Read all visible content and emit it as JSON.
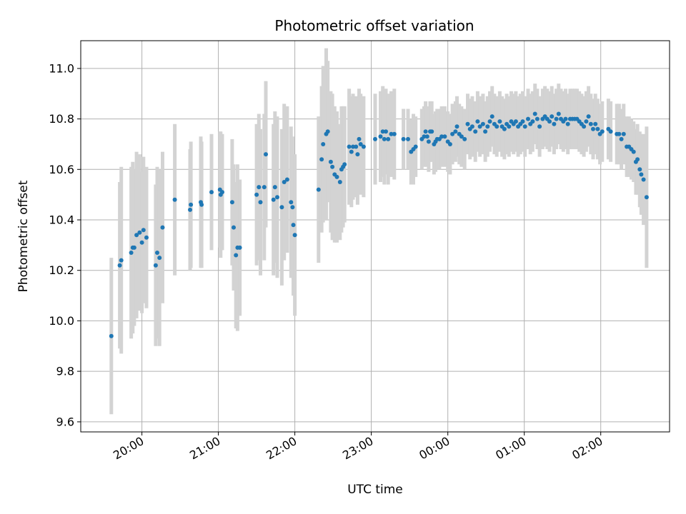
{
  "chart_data": {
    "type": "scatter",
    "title": "Photometric offset variation",
    "xlabel": "UTC time",
    "ylabel": "Photometric offset",
    "x_unit": "UTC hours (wrapping past midnight)",
    "xlim": [
      19.2,
      26.9
    ],
    "ylim": [
      9.56,
      11.11
    ],
    "grid": true,
    "x_ticks": [
      {
        "value": 20,
        "label": "20:00"
      },
      {
        "value": 21,
        "label": "21:00"
      },
      {
        "value": 22,
        "label": "22:00"
      },
      {
        "value": 23,
        "label": "23:00"
      },
      {
        "value": 24,
        "label": "00:00"
      },
      {
        "value": 25,
        "label": "01:00"
      },
      {
        "value": 26,
        "label": "02:00"
      }
    ],
    "y_ticks": [
      {
        "value": 9.6,
        "label": "9.6"
      },
      {
        "value": 9.8,
        "label": "9.8"
      },
      {
        "value": 10.0,
        "label": "10.0"
      },
      {
        "value": 10.2,
        "label": "10.2"
      },
      {
        "value": 10.4,
        "label": "10.4"
      },
      {
        "value": 10.6,
        "label": "10.6"
      },
      {
        "value": 10.8,
        "label": "10.8"
      },
      {
        "value": 11.0,
        "label": "11.0"
      }
    ],
    "colors": {
      "points": "#1f77b4",
      "errorbars": "#d3d3d3",
      "grid": "#b0b0b0"
    },
    "points": [
      [
        19.6,
        9.94,
        0.31
      ],
      [
        19.71,
        10.22,
        0.33
      ],
      [
        19.73,
        10.24,
        0.37
      ],
      [
        19.86,
        10.27,
        0.34
      ],
      [
        19.88,
        10.29,
        0.34
      ],
      [
        19.9,
        10.29,
        0.31
      ],
      [
        19.93,
        10.34,
        0.33
      ],
      [
        19.97,
        10.35,
        0.31
      ],
      [
        20.0,
        10.31,
        0.28
      ],
      [
        20.02,
        10.36,
        0.29
      ],
      [
        20.06,
        10.33,
        0.28
      ],
      [
        20.18,
        10.22,
        0.32
      ],
      [
        20.2,
        10.27,
        0.34
      ],
      [
        20.23,
        10.25,
        0.35
      ],
      [
        20.27,
        10.37,
        0.3
      ],
      [
        20.43,
        10.48,
        0.3
      ],
      [
        20.63,
        10.44,
        0.24
      ],
      [
        20.64,
        10.46,
        0.25
      ],
      [
        20.77,
        10.47,
        0.26
      ],
      [
        20.78,
        10.46,
        0.25
      ],
      [
        20.91,
        10.51,
        0.23
      ],
      [
        21.02,
        10.52,
        0.23
      ],
      [
        21.03,
        10.5,
        0.25
      ],
      [
        21.05,
        10.51,
        0.23
      ],
      [
        21.18,
        10.47,
        0.25
      ],
      [
        21.2,
        10.37,
        0.25
      ],
      [
        21.23,
        10.26,
        0.29
      ],
      [
        21.25,
        10.29,
        0.33
      ],
      [
        21.28,
        10.29,
        0.27
      ],
      [
        21.5,
        10.5,
        0.28
      ],
      [
        21.53,
        10.53,
        0.29
      ],
      [
        21.55,
        10.47,
        0.29
      ],
      [
        21.6,
        10.53,
        0.29
      ],
      [
        21.62,
        10.66,
        0.29
      ],
      [
        21.72,
        10.48,
        0.3
      ],
      [
        21.74,
        10.53,
        0.3
      ],
      [
        21.77,
        10.49,
        0.32
      ],
      [
        21.83,
        10.45,
        0.31
      ],
      [
        21.86,
        10.55,
        0.31
      ],
      [
        21.9,
        10.56,
        0.29
      ],
      [
        21.95,
        10.47,
        0.3
      ],
      [
        21.97,
        10.45,
        0.28
      ],
      [
        21.98,
        10.38,
        0.28
      ],
      [
        22.0,
        10.34,
        0.32
      ],
      [
        22.31,
        10.52,
        0.29
      ],
      [
        22.35,
        10.64,
        0.29
      ],
      [
        22.37,
        10.7,
        0.31
      ],
      [
        22.41,
        10.74,
        0.34
      ],
      [
        22.43,
        10.75,
        0.28
      ],
      [
        22.47,
        10.63,
        0.28
      ],
      [
        22.49,
        10.61,
        0.29
      ],
      [
        22.52,
        10.58,
        0.27
      ],
      [
        22.55,
        10.57,
        0.26
      ],
      [
        22.59,
        10.55,
        0.23
      ],
      [
        22.61,
        10.6,
        0.25
      ],
      [
        22.63,
        10.61,
        0.24
      ],
      [
        22.65,
        10.62,
        0.23
      ],
      [
        22.71,
        10.69,
        0.23
      ],
      [
        22.74,
        10.67,
        0.22
      ],
      [
        22.76,
        10.69,
        0.21
      ],
      [
        22.8,
        10.69,
        0.2
      ],
      [
        22.82,
        10.66,
        0.2
      ],
      [
        22.84,
        10.72,
        0.2
      ],
      [
        22.86,
        10.7,
        0.2
      ],
      [
        22.9,
        10.69,
        0.2
      ],
      [
        23.05,
        10.72,
        0.18
      ],
      [
        23.12,
        10.73,
        0.18
      ],
      [
        23.15,
        10.75,
        0.18
      ],
      [
        23.17,
        10.72,
        0.18
      ],
      [
        23.19,
        10.75,
        0.17
      ],
      [
        23.22,
        10.72,
        0.18
      ],
      [
        23.26,
        10.74,
        0.17
      ],
      [
        23.3,
        10.74,
        0.18
      ],
      [
        23.42,
        10.72,
        0.12
      ],
      [
        23.48,
        10.72,
        0.12
      ],
      [
        23.52,
        10.67,
        0.13
      ],
      [
        23.55,
        10.68,
        0.14
      ],
      [
        23.58,
        10.69,
        0.12
      ],
      [
        23.66,
        10.72,
        0.12
      ],
      [
        23.69,
        10.73,
        0.12
      ],
      [
        23.71,
        10.75,
        0.12
      ],
      [
        23.73,
        10.73,
        0.12
      ],
      [
        23.75,
        10.71,
        0.12
      ],
      [
        23.77,
        10.75,
        0.12
      ],
      [
        23.79,
        10.75,
        0.12
      ],
      [
        23.82,
        10.7,
        0.12
      ],
      [
        23.84,
        10.71,
        0.12
      ],
      [
        23.86,
        10.72,
        0.12
      ],
      [
        23.89,
        10.72,
        0.12
      ],
      [
        23.92,
        10.73,
        0.12
      ],
      [
        23.96,
        10.73,
        0.12
      ],
      [
        24.0,
        10.71,
        0.12
      ],
      [
        24.03,
        10.7,
        0.12
      ],
      [
        24.06,
        10.74,
        0.12
      ],
      [
        24.1,
        10.75,
        0.12
      ],
      [
        24.12,
        10.77,
        0.12
      ],
      [
        24.15,
        10.74,
        0.12
      ],
      [
        24.18,
        10.73,
        0.12
      ],
      [
        24.22,
        10.72,
        0.12
      ],
      [
        24.26,
        10.78,
        0.12
      ],
      [
        24.29,
        10.76,
        0.12
      ],
      [
        24.32,
        10.77,
        0.12
      ],
      [
        24.36,
        10.75,
        0.12
      ],
      [
        24.39,
        10.79,
        0.12
      ],
      [
        24.42,
        10.77,
        0.12
      ],
      [
        24.46,
        10.78,
        0.12
      ],
      [
        24.49,
        10.75,
        0.12
      ],
      [
        24.52,
        10.77,
        0.12
      ],
      [
        24.55,
        10.79,
        0.12
      ],
      [
        24.58,
        10.81,
        0.12
      ],
      [
        24.61,
        10.78,
        0.12
      ],
      [
        24.64,
        10.77,
        0.12
      ],
      [
        24.68,
        10.79,
        0.12
      ],
      [
        24.71,
        10.77,
        0.12
      ],
      [
        24.74,
        10.76,
        0.12
      ],
      [
        24.77,
        10.78,
        0.12
      ],
      [
        24.8,
        10.77,
        0.12
      ],
      [
        24.83,
        10.79,
        0.12
      ],
      [
        24.86,
        10.78,
        0.12
      ],
      [
        24.89,
        10.79,
        0.12
      ],
      [
        24.92,
        10.77,
        0.12
      ],
      [
        24.95,
        10.78,
        0.12
      ],
      [
        24.98,
        10.79,
        0.12
      ],
      [
        25.01,
        10.77,
        0.12
      ],
      [
        25.05,
        10.8,
        0.12
      ],
      [
        25.08,
        10.78,
        0.12
      ],
      [
        25.11,
        10.79,
        0.12
      ],
      [
        25.14,
        10.82,
        0.12
      ],
      [
        25.17,
        10.8,
        0.12
      ],
      [
        25.2,
        10.77,
        0.12
      ],
      [
        25.24,
        10.8,
        0.12
      ],
      [
        25.27,
        10.81,
        0.12
      ],
      [
        25.3,
        10.8,
        0.12
      ],
      [
        25.33,
        10.79,
        0.12
      ],
      [
        25.36,
        10.81,
        0.12
      ],
      [
        25.39,
        10.78,
        0.12
      ],
      [
        25.42,
        10.8,
        0.12
      ],
      [
        25.45,
        10.82,
        0.12
      ],
      [
        25.48,
        10.8,
        0.12
      ],
      [
        25.51,
        10.79,
        0.12
      ],
      [
        25.54,
        10.8,
        0.12
      ],
      [
        25.57,
        10.78,
        0.12
      ],
      [
        25.6,
        10.8,
        0.12
      ],
      [
        25.63,
        10.8,
        0.12
      ],
      [
        25.66,
        10.8,
        0.12
      ],
      [
        25.69,
        10.8,
        0.12
      ],
      [
        25.72,
        10.79,
        0.12
      ],
      [
        25.75,
        10.78,
        0.12
      ],
      [
        25.78,
        10.77,
        0.12
      ],
      [
        25.81,
        10.79,
        0.12
      ],
      [
        25.84,
        10.81,
        0.12
      ],
      [
        25.87,
        10.78,
        0.12
      ],
      [
        25.9,
        10.76,
        0.12
      ],
      [
        25.93,
        10.78,
        0.12
      ],
      [
        25.96,
        10.76,
        0.12
      ],
      [
        25.99,
        10.74,
        0.12
      ],
      [
        26.02,
        10.75,
        0.12
      ],
      [
        26.1,
        10.76,
        0.12
      ],
      [
        26.13,
        10.75,
        0.12
      ],
      [
        26.21,
        10.74,
        0.12
      ],
      [
        26.24,
        10.74,
        0.12
      ],
      [
        26.27,
        10.72,
        0.12
      ],
      [
        26.3,
        10.74,
        0.12
      ],
      [
        26.34,
        10.69,
        0.12
      ],
      [
        26.37,
        10.69,
        0.12
      ],
      [
        26.4,
        10.68,
        0.12
      ],
      [
        26.43,
        10.67,
        0.12
      ],
      [
        26.46,
        10.63,
        0.13
      ],
      [
        26.48,
        10.64,
        0.14
      ],
      [
        26.51,
        10.6,
        0.15
      ],
      [
        26.53,
        10.58,
        0.16
      ],
      [
        26.56,
        10.56,
        0.18
      ],
      [
        26.6,
        10.49,
        0.28
      ]
    ]
  }
}
